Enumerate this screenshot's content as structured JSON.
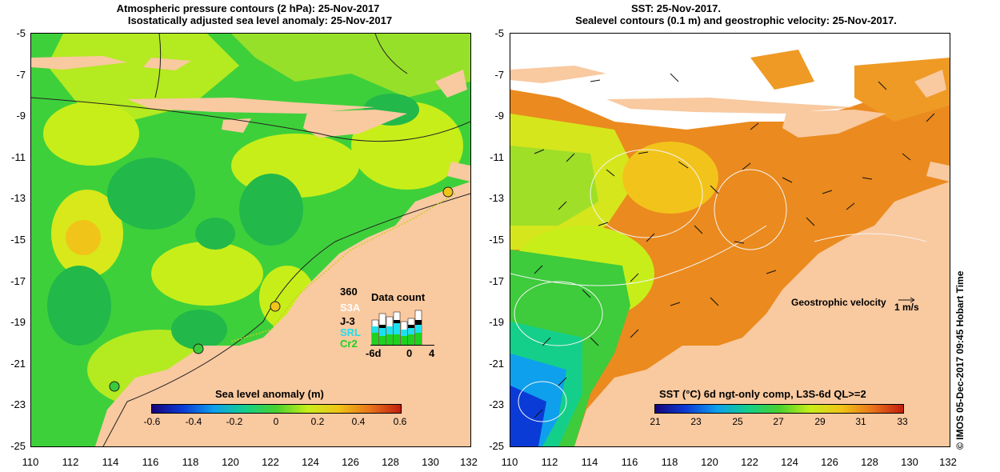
{
  "left_panel": {
    "title_line1": "Atmospheric pressure contours (2 hPa): 25-Nov-2017",
    "title_line2": "Isostatically adjusted sea level anomaly: 25-Nov-2017",
    "y_ticks": [
      "-5",
      "-7",
      "-9",
      "-11",
      "-13",
      "-15",
      "-17",
      "-19",
      "-21",
      "-23",
      "-25"
    ],
    "x_ticks": [
      "110",
      "112",
      "114",
      "116",
      "118",
      "120",
      "122",
      "124",
      "126",
      "128",
      "130",
      "132"
    ],
    "colorbar": {
      "label": "Sea level anomaly (m)",
      "ticks": [
        "-0.6",
        "-0.4",
        "-0.2",
        "0",
        "0.2",
        "0.4",
        "0.6"
      ],
      "colors": [
        "#16057a",
        "#0b3bd6",
        "#0ea0ec",
        "#14cf8a",
        "#49d12e",
        "#c8ee1a",
        "#f0c418",
        "#e9751a",
        "#c21d0f"
      ]
    },
    "data_count": {
      "title": "Data count",
      "scale_max": "360",
      "satellites": [
        {
          "name": "S3A",
          "color": "#ffffff"
        },
        {
          "name": "J-3",
          "color": "#000000"
        },
        {
          "name": "SRL",
          "color": "#1de0ef"
        },
        {
          "name": "Cr2",
          "color": "#1ed21e"
        }
      ],
      "x_ticks": [
        "-6d",
        "0",
        "4"
      ]
    }
  },
  "right_panel": {
    "title_line1": "SST: 25-Nov-2017.",
    "title_line2": "Sealevel contours (0.1 m) and geostrophic velocity: 25-Nov-2017.",
    "y_ticks": [
      "-5",
      "-7",
      "-9",
      "-11",
      "-13",
      "-15",
      "-17",
      "-19",
      "-21",
      "-23",
      "-25"
    ],
    "x_ticks": [
      "110",
      "112",
      "114",
      "116",
      "118",
      "120",
      "122",
      "124",
      "126",
      "128",
      "130",
      "132"
    ],
    "colorbar": {
      "label": "SST (°C) 6d ngt-only comp, L3S-6d QL>=2",
      "ticks": [
        "21",
        "23",
        "25",
        "27",
        "29",
        "31",
        "33"
      ],
      "colors": [
        "#16057a",
        "#0b3bd6",
        "#0ea0ec",
        "#14cf8a",
        "#49d12e",
        "#c8ee1a",
        "#f0c418",
        "#e9751a",
        "#c21d0f"
      ]
    },
    "velocity_legend": {
      "label": "Geostrophic velocity",
      "unit": "1 m/s"
    }
  },
  "credit": "© IMOS 05-Dec-2017 09:45 Hobart Time",
  "colors": {
    "land": "#f9c9a0",
    "sea_green": "#39cc3a",
    "sea_yellow": "#c6ed1d",
    "sst_orange": "#eb8a1e",
    "sst_yellow": "#f2c41b",
    "white_cloud": "#ffffff"
  }
}
